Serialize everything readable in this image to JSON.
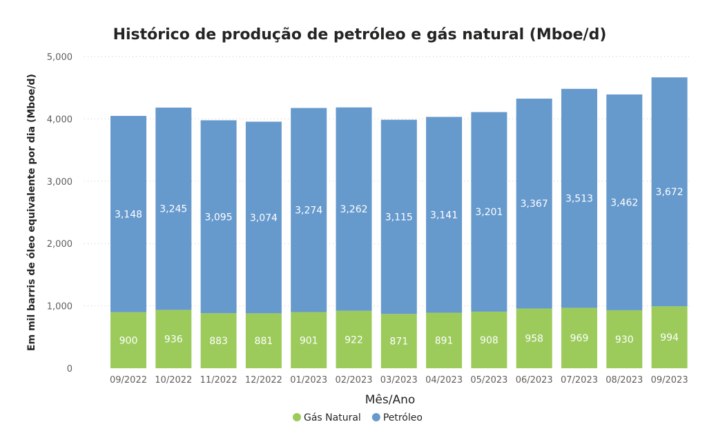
{
  "chart_data": {
    "type": "bar",
    "stacked": true,
    "title": "Histórico de produção de petróleo e gás natural (Mboe/d)",
    "xlabel": "Mês/Ano",
    "ylabel": "Em mil barris de óleo equivalente por dia (Mboe/d)",
    "ylim": [
      0,
      5000
    ],
    "yticks": [
      "0",
      "1,000",
      "2,000",
      "3,000",
      "4,000",
      "5,000"
    ],
    "ytick_values": [
      0,
      1000,
      2000,
      3000,
      4000,
      5000
    ],
    "grid": true,
    "legend_position": "bottom-center",
    "categories": [
      "09/2022",
      "10/2022",
      "11/2022",
      "12/2022",
      "01/2023",
      "02/2023",
      "03/2023",
      "04/2023",
      "05/2023",
      "06/2023",
      "07/2023",
      "08/2023",
      "09/2023"
    ],
    "series": [
      {
        "name": "Gás Natural",
        "color": "#9ccb5c",
        "values": [
          900,
          936,
          883,
          881,
          901,
          922,
          871,
          891,
          908,
          958,
          969,
          930,
          994
        ],
        "labels": [
          "900",
          "936",
          "883",
          "881",
          "901",
          "922",
          "871",
          "891",
          "908",
          "958",
          "969",
          "930",
          "994"
        ]
      },
      {
        "name": "Petróleo",
        "color": "#6699cc",
        "values": [
          3148,
          3245,
          3095,
          3074,
          3274,
          3262,
          3115,
          3141,
          3201,
          3367,
          3513,
          3462,
          3672
        ],
        "labels": [
          "3,148",
          "3,245",
          "3,095",
          "3,074",
          "3,274",
          "3,262",
          "3,115",
          "3,141",
          "3,201",
          "3,367",
          "3,513",
          "3,462",
          "3,672"
        ]
      }
    ]
  }
}
